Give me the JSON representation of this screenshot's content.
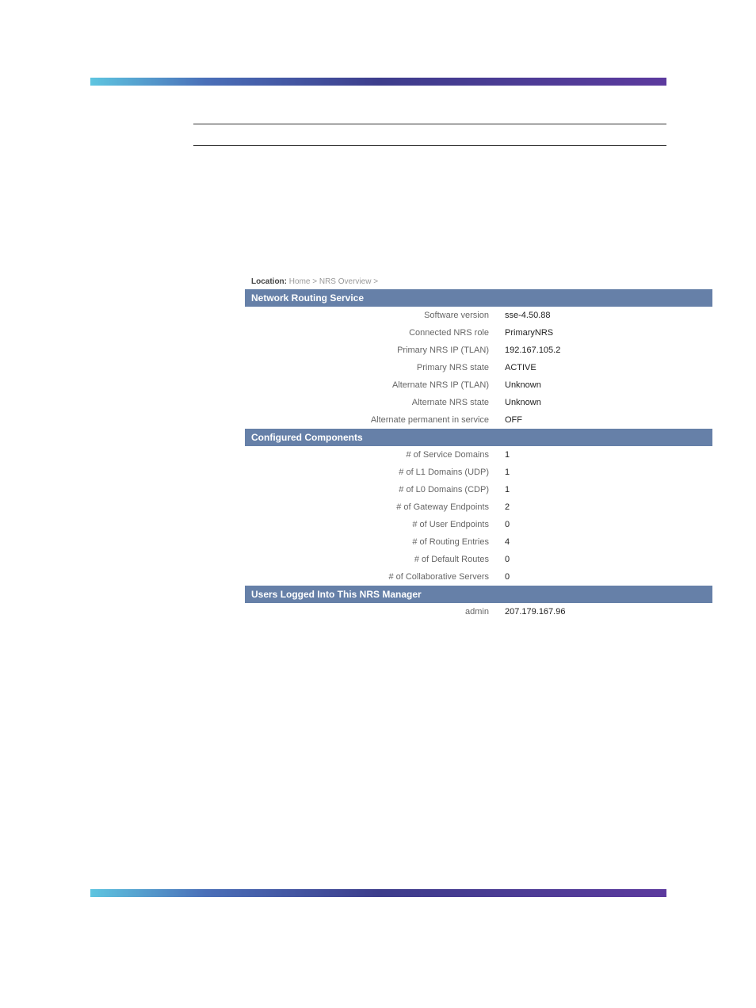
{
  "breadcrumb": {
    "label": "Location:",
    "trail": "Home > NRS Overview >"
  },
  "sections": {
    "nrs": {
      "title": "Network Routing Service",
      "rows": [
        {
          "key": "Software version",
          "val": "sse-4.50.88"
        },
        {
          "key": "Connected NRS role",
          "val": "PrimaryNRS"
        },
        {
          "key": "Primary NRS IP (TLAN)",
          "val": "192.167.105.2"
        },
        {
          "key": "Primary NRS state",
          "val": "ACTIVE"
        },
        {
          "key": "Alternate NRS IP (TLAN)",
          "val": "Unknown"
        },
        {
          "key": "Alternate NRS state",
          "val": "Unknown"
        },
        {
          "key": "Alternate permanent in service",
          "val": "OFF"
        }
      ]
    },
    "components": {
      "title": "Configured Components",
      "rows": [
        {
          "key": "# of Service Domains",
          "val": "1"
        },
        {
          "key": "# of L1 Domains (UDP)",
          "val": "1"
        },
        {
          "key": "# of L0 Domains (CDP)",
          "val": "1"
        },
        {
          "key": "# of Gateway Endpoints",
          "val": "2"
        },
        {
          "key": "# of User Endpoints",
          "val": "0"
        },
        {
          "key": "# of Routing Entries",
          "val": "4"
        },
        {
          "key": "# of Default Routes",
          "val": "0"
        },
        {
          "key": "# of Collaborative Servers",
          "val": "0"
        }
      ]
    },
    "users": {
      "title": "Users Logged Into This NRS Manager",
      "rows": [
        {
          "key": "admin",
          "val": "207.179.167.96"
        }
      ]
    }
  },
  "styling": {
    "section_header_bg": "#6680a8",
    "section_header_color": "#ffffff",
    "key_color": "#666666",
    "val_color": "#222222",
    "key_fontsize": 11,
    "val_fontsize": 11,
    "header_fontsize": 12,
    "breadcrumb_fontsize": 10,
    "gradient_stops": [
      "#5ec5e0",
      "#4a6fb8",
      "#3d3d8c",
      "#5c3a9e"
    ],
    "key_col_width": 320,
    "row_padding_v": 5,
    "row_padding_h": 8
  }
}
